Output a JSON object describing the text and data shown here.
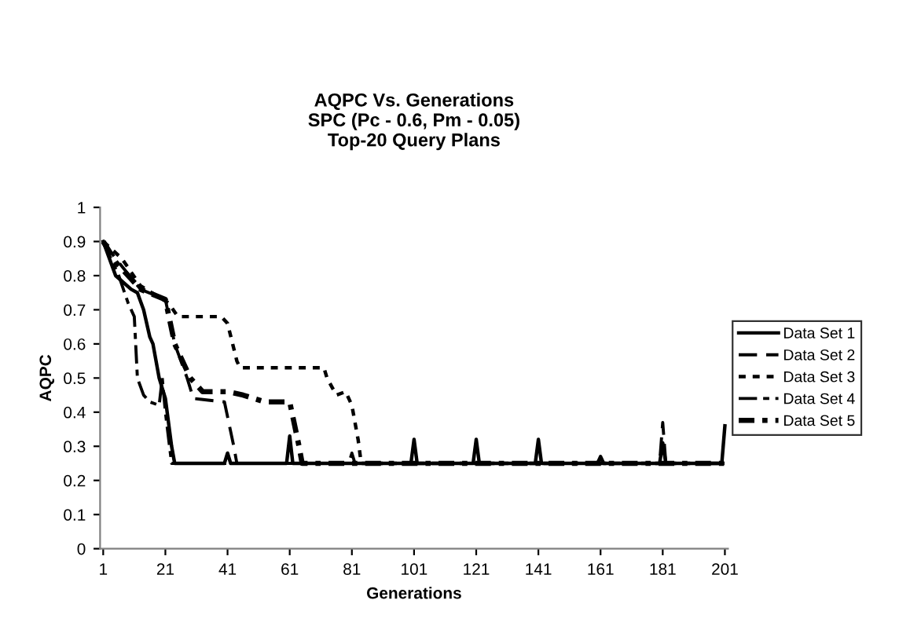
{
  "chart_data": {
    "type": "line",
    "title": "AQPC Vs. Generations\nSPC (Pc - 0.6, Pm - 0.05)\nTop-20 Query Plans",
    "xlabel": "Generations",
    "ylabel": "AQPC",
    "xlim": [
      0,
      202
    ],
    "xticks": [
      1,
      21,
      41,
      61,
      81,
      101,
      121,
      141,
      161,
      181,
      201
    ],
    "ylim": [
      0,
      1
    ],
    "yticks": [
      0,
      0.1,
      0.2,
      0.3,
      0.4,
      0.5,
      0.6,
      0.7,
      0.8,
      0.9,
      1
    ],
    "grid": false,
    "legend": "right",
    "marker": "none",
    "series": [
      {
        "name": "Data Set 1",
        "color": "#000000",
        "line_style": "solid",
        "x": [
          1,
          5,
          10,
          12,
          14,
          16,
          17,
          19,
          21,
          23,
          24,
          40,
          41,
          42,
          60,
          61,
          62,
          100,
          101,
          102,
          120,
          121,
          122,
          140,
          141,
          142,
          160,
          161,
          162,
          180,
          181,
          182,
          200,
          201
        ],
        "values": [
          0.9,
          0.8,
          0.76,
          0.75,
          0.7,
          0.62,
          0.6,
          0.5,
          0.44,
          0.3,
          0.25,
          0.25,
          0.28,
          0.25,
          0.25,
          0.33,
          0.25,
          0.25,
          0.32,
          0.25,
          0.25,
          0.32,
          0.25,
          0.25,
          0.32,
          0.25,
          0.25,
          0.27,
          0.25,
          0.25,
          0.31,
          0.25,
          0.25,
          0.36
        ]
      },
      {
        "name": "Data Set 2",
        "color": "#000000",
        "line_style": "dashed",
        "x": [
          1,
          5,
          13,
          21,
          24,
          28,
          30,
          40,
          43,
          44,
          180,
          181,
          182,
          201
        ],
        "values": [
          0.9,
          0.85,
          0.76,
          0.73,
          0.6,
          0.5,
          0.44,
          0.43,
          0.3,
          0.25,
          0.25,
          0.37,
          0.25,
          0.25
        ]
      },
      {
        "name": "Data Set 3",
        "color": "#000000",
        "line_style": "dotted",
        "x": [
          1,
          7,
          13,
          22,
          25,
          39,
          41,
          44,
          45,
          72,
          73,
          76,
          79,
          81,
          83,
          84,
          201
        ],
        "values": [
          0.9,
          0.85,
          0.77,
          0.72,
          0.68,
          0.68,
          0.66,
          0.55,
          0.53,
          0.53,
          0.5,
          0.45,
          0.46,
          0.42,
          0.32,
          0.25,
          0.25
        ]
      },
      {
        "name": "Data Set 4",
        "color": "#000000",
        "line_style": "dashdot",
        "x": [
          1,
          6,
          9,
          11,
          12,
          14,
          16,
          19,
          20,
          21,
          23,
          80,
          81,
          82,
          201
        ],
        "values": [
          0.9,
          0.8,
          0.72,
          0.68,
          0.5,
          0.45,
          0.43,
          0.42,
          0.5,
          0.4,
          0.25,
          0.25,
          0.28,
          0.25,
          0.25
        ]
      },
      {
        "name": "Data Set 5",
        "color": "#000000",
        "line_style": "dashdotheavy",
        "x": [
          1,
          5,
          13,
          21,
          24,
          29,
          33,
          41,
          46,
          53,
          61,
          64,
          65,
          201
        ],
        "values": [
          0.9,
          0.84,
          0.76,
          0.73,
          0.6,
          0.5,
          0.46,
          0.46,
          0.45,
          0.43,
          0.43,
          0.3,
          0.25,
          0.25
        ]
      }
    ]
  }
}
